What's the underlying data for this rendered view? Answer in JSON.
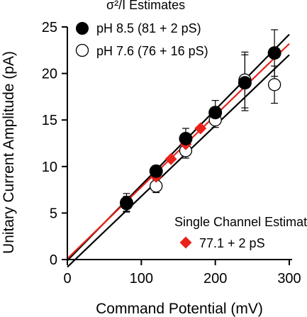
{
  "chart_data": {
    "type": "scatter",
    "title": "",
    "xlabel": "Command Potential (mV)",
    "ylabel": "Unitary Current Amplitude (pA)",
    "xlim": [
      0,
      300
    ],
    "ylim": [
      0,
      25
    ],
    "x_ticks": [
      0,
      100,
      200,
      300
    ],
    "y_ticks": [
      0,
      5,
      10,
      15,
      20,
      25
    ],
    "grid": false,
    "legend_title": "σ²/I Estimates",
    "legend2_title": "Single Channel Estimate",
    "series": [
      {
        "name": "pH 8.5 (81 + 2 pS)",
        "marker": "filled-circle",
        "color": "#000000",
        "x": [
          80,
          120,
          160,
          200,
          240,
          280
        ],
        "y": [
          6.1,
          9.5,
          13.0,
          15.8,
          19.0,
          22.2
        ],
        "err": [
          1.0,
          0.6,
          1.1,
          1.3,
          3.0,
          2.5
        ]
      },
      {
        "name": "pH 7.6 (76 + 16 pS)",
        "marker": "open-circle",
        "color": "#000000",
        "x": [
          80,
          120,
          160,
          200,
          240,
          280
        ],
        "y": [
          6.0,
          7.9,
          11.7,
          15.0,
          19.3,
          18.8
        ],
        "err": [
          0.8,
          0.7,
          0.8,
          0.8,
          3.0,
          2.0
        ]
      },
      {
        "name": "77.1 + 2 pS",
        "marker": "filled-diamond",
        "color": "#e8231b",
        "x": [
          120,
          140,
          160,
          180
        ],
        "y": [
          8.9,
          10.8,
          12.4,
          14.1
        ],
        "err": [
          0,
          0,
          0,
          0
        ]
      }
    ],
    "fit_lines": [
      {
        "name": "fit-ph85",
        "color": "#000000",
        "x": [
          0,
          300
        ],
        "y": [
          -0.1,
          24.2
        ]
      },
      {
        "name": "fit-ph76",
        "color": "#000000",
        "x": [
          0,
          300
        ],
        "y": [
          -0.8,
          22.0
        ]
      },
      {
        "name": "fit-single",
        "color": "#e8231b",
        "x": [
          0,
          300
        ],
        "y": [
          0.1,
          23.2
        ]
      }
    ]
  }
}
